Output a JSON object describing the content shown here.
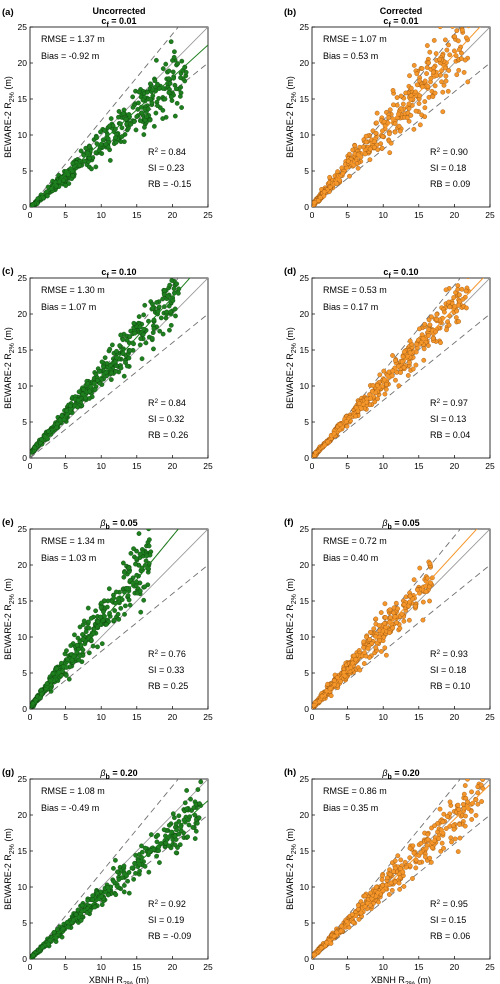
{
  "figure": {
    "xlabel": "XBNH R_2% (m)",
    "ylabel": "BEWARE-2 R_2% (m)",
    "column_titles": [
      "Uncorrected",
      "Corrected"
    ],
    "colors": {
      "uncorrected": "#1e7f1e",
      "uncorrected_edge": "#0c3d0c",
      "corrected": "#f5962a",
      "corrected_edge": "#8a4a0a",
      "one_to_one": "#9a9a9a",
      "dashed": "#707070"
    }
  },
  "chart_data": [
    {
      "id": "a",
      "type": "scatter",
      "panel_label": "(a)",
      "title_top": "Uncorrected",
      "title_param": "c",
      "title_sub": "f",
      "title_value": " = 0.01",
      "xlim": [
        0,
        25
      ],
      "ylim": [
        0,
        25
      ],
      "xticks": [
        0,
        5,
        10,
        15,
        20,
        25
      ],
      "yticks": [
        0,
        5,
        10,
        15,
        20,
        25
      ],
      "stats_top": [
        "RMSE = 1.37 m",
        "Bias = -0.92 m"
      ],
      "stats_bottom": [
        "0.84",
        "SI = 0.23",
        "RB = -0.15"
      ],
      "series": [
        {
          "color_key": "uncorrected",
          "slope": 0.88,
          "intercept": -0.15,
          "x_range": [
            0,
            22
          ],
          "spread": 0.11,
          "fit_slope": 0.9,
          "fit_intercept": 0
        }
      ]
    },
    {
      "id": "b",
      "type": "scatter",
      "panel_label": "(b)",
      "title_top": "Corrected",
      "title_param": "c",
      "title_sub": "f",
      "title_value": " = 0.01",
      "xlim": [
        0,
        25
      ],
      "ylim": [
        0,
        25
      ],
      "xticks": [
        0,
        5,
        10,
        15,
        20,
        25
      ],
      "yticks": [
        0,
        5,
        10,
        15,
        20,
        25
      ],
      "stats_top": [
        "RMSE = 1.07 m",
        "Bias = 0.53 m"
      ],
      "stats_bottom": [
        "0.90",
        "SI = 0.18",
        "RB = 0.09"
      ],
      "series": [
        {
          "color_key": "corrected",
          "slope": 1.06,
          "intercept": 0.2,
          "x_range": [
            0,
            22
          ],
          "spread": 0.12,
          "fit_slope": 1.06,
          "fit_intercept": 0
        }
      ]
    },
    {
      "id": "c",
      "type": "scatter",
      "panel_label": "(c)",
      "title_top": "",
      "title_param": "c",
      "title_sub": "f",
      "title_value": " = 0.10",
      "xlim": [
        0,
        25
      ],
      "ylim": [
        0,
        25
      ],
      "xticks": [
        0,
        5,
        10,
        15,
        20,
        25
      ],
      "yticks": [
        0,
        5,
        10,
        15,
        20,
        25
      ],
      "stats_top": [
        "RMSE = 1.30 m",
        "Bias = 1.07 m"
      ],
      "stats_bottom": [
        "0.84",
        "SI = 0.32",
        "RB = 0.26"
      ],
      "series": [
        {
          "color_key": "uncorrected",
          "slope": 1.08,
          "intercept": 0.6,
          "x_range": [
            0,
            21
          ],
          "spread": 0.08,
          "fit_slope": 1.1,
          "fit_intercept": 0.3
        }
      ]
    },
    {
      "id": "d",
      "type": "scatter",
      "panel_label": "(d)",
      "title_top": "",
      "title_param": "c",
      "title_sub": "f",
      "title_value": " = 0.10",
      "xlim": [
        0,
        25
      ],
      "ylim": [
        0,
        25
      ],
      "xticks": [
        0,
        5,
        10,
        15,
        20,
        25
      ],
      "yticks": [
        0,
        5,
        10,
        15,
        20,
        25
      ],
      "stats_top": [
        "RMSE = 0.53 m",
        "Bias = 0.17 m"
      ],
      "stats_bottom": [
        "0.97",
        "SI = 0.13",
        "RB = 0.04"
      ],
      "series": [
        {
          "color_key": "corrected",
          "slope": 1.04,
          "intercept": 0.1,
          "x_range": [
            0,
            22
          ],
          "spread": 0.07,
          "fit_slope": 1.04,
          "fit_intercept": 0
        }
      ]
    },
    {
      "id": "e",
      "type": "scatter",
      "panel_label": "(e)",
      "title_top": "",
      "title_param": "β",
      "title_sub": "b",
      "title_value": " = 0.05",
      "xlim": [
        0,
        25
      ],
      "ylim": [
        0,
        25
      ],
      "xticks": [
        0,
        5,
        10,
        15,
        20,
        25
      ],
      "yticks": [
        0,
        5,
        10,
        15,
        20,
        25
      ],
      "stats_top": [
        "RMSE = 1.34 m",
        "Bias = 1.03 m"
      ],
      "stats_bottom": [
        "0.76",
        "SI = 0.33",
        "RB = 0.25"
      ],
      "series": [
        {
          "color_key": "uncorrected",
          "slope": 1.2,
          "intercept": 0.2,
          "x_range": [
            0,
            17
          ],
          "spread": 0.12,
          "fit_slope": 1.2,
          "fit_intercept": 0
        }
      ]
    },
    {
      "id": "f",
      "type": "scatter",
      "panel_label": "(f)",
      "title_top": "",
      "title_param": "β",
      "title_sub": "b",
      "title_value": " = 0.05",
      "xlim": [
        0,
        25
      ],
      "ylim": [
        0,
        25
      ],
      "xticks": [
        0,
        5,
        10,
        15,
        20,
        25
      ],
      "yticks": [
        0,
        5,
        10,
        15,
        20,
        25
      ],
      "stats_top": [
        "RMSE = 0.72 m",
        "Bias = 0.40 m"
      ],
      "stats_bottom": [
        "0.93",
        "SI = 0.18",
        "RB = 0.10"
      ],
      "series": [
        {
          "color_key": "corrected",
          "slope": 1.08,
          "intercept": 0.2,
          "x_range": [
            0,
            17
          ],
          "spread": 0.1,
          "fit_slope": 1.08,
          "fit_intercept": 0
        }
      ]
    },
    {
      "id": "g",
      "type": "scatter",
      "panel_label": "(g)",
      "title_top": "",
      "title_param": "β",
      "title_sub": "b",
      "title_value": " = 0.20",
      "xlim": [
        0,
        25
      ],
      "ylim": [
        0,
        25
      ],
      "xticks": [
        0,
        5,
        10,
        15,
        20,
        25
      ],
      "yticks": [
        0,
        5,
        10,
        15,
        20,
        25
      ],
      "stats_top": [
        "RMSE = 1.08 m",
        "Bias = -0.49 m"
      ],
      "stats_bottom": [
        "0.92",
        "SI = 0.19",
        "RB = -0.09"
      ],
      "series": [
        {
          "color_key": "uncorrected",
          "slope": 0.87,
          "intercept": 0.1,
          "x_range": [
            0,
            24
          ],
          "spread": 0.08,
          "fit_slope": 0.88,
          "fit_intercept": 0
        }
      ]
    },
    {
      "id": "h",
      "type": "scatter",
      "panel_label": "(h)",
      "title_top": "",
      "title_param": "β",
      "title_sub": "b",
      "title_value": " = 0.20",
      "xlim": [
        0,
        25
      ],
      "ylim": [
        0,
        25
      ],
      "xticks": [
        0,
        5,
        10,
        15,
        20,
        25
      ],
      "yticks": [
        0,
        5,
        10,
        15,
        20,
        25
      ],
      "stats_top": [
        "RMSE = 0.86 m",
        "Bias = 0.35 m"
      ],
      "stats_bottom": [
        "0.95",
        "SI = 0.15",
        "RB = 0.06"
      ],
      "series": [
        {
          "color_key": "corrected",
          "slope": 0.96,
          "intercept": 0.3,
          "x_range": [
            0,
            24
          ],
          "spread": 0.08,
          "fit_slope": 0.97,
          "fit_intercept": 0
        }
      ]
    }
  ]
}
